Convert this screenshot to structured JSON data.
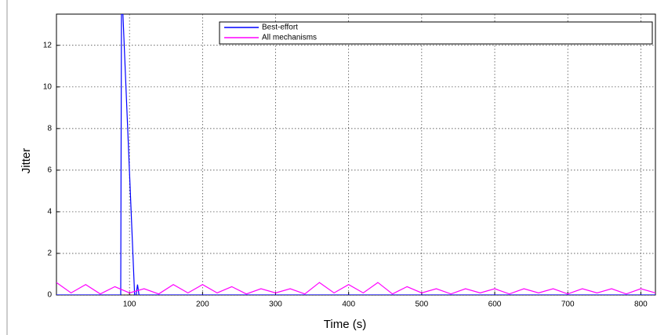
{
  "chart_data": {
    "type": "line",
    "x_label": "Time (s)",
    "y_label": "Jitter",
    "xlim": [
      0,
      820
    ],
    "ylim": [
      0,
      13.5
    ],
    "xticks": [
      100,
      200,
      300,
      400,
      500,
      600,
      700,
      800
    ],
    "yticks": [
      0,
      2,
      4,
      6,
      8,
      10,
      12
    ],
    "grid": true,
    "legend": "top",
    "series": [
      {
        "name": "Best-effort",
        "color": "#0000ff",
        "x": [
          0,
          80,
          88,
          89,
          91,
          107,
          109,
          111,
          113,
          820
        ],
        "values": [
          0,
          0,
          0,
          13.5,
          13.5,
          0,
          0,
          0.5,
          0,
          0
        ]
      },
      {
        "name": "All mechanisms",
        "color": "#ff00ff",
        "x": [
          0,
          20,
          40,
          60,
          80,
          100,
          120,
          140,
          160,
          180,
          200,
          220,
          240,
          260,
          280,
          300,
          320,
          340,
          360,
          380,
          400,
          420,
          440,
          460,
          480,
          500,
          520,
          540,
          560,
          580,
          600,
          620,
          640,
          660,
          680,
          700,
          720,
          740,
          760,
          780,
          800,
          820
        ],
        "values": [
          0.6,
          0.1,
          0.5,
          0.05,
          0.4,
          0.1,
          0.3,
          0.05,
          0.5,
          0.1,
          0.5,
          0.1,
          0.4,
          0.05,
          0.3,
          0.1,
          0.3,
          0.05,
          0.6,
          0.1,
          0.5,
          0.1,
          0.6,
          0.05,
          0.4,
          0.1,
          0.3,
          0.05,
          0.3,
          0.1,
          0.3,
          0.05,
          0.3,
          0.1,
          0.3,
          0.05,
          0.3,
          0.1,
          0.3,
          0.05,
          0.3,
          0.1
        ]
      }
    ]
  }
}
